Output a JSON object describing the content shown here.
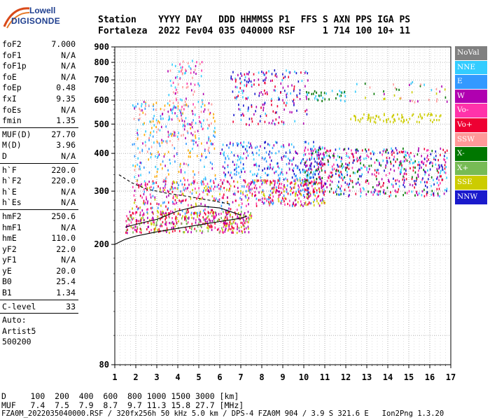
{
  "logo": {
    "line1": "Lowell",
    "line2": "DIGISONDE"
  },
  "header": {
    "labels": [
      "Station",
      "YYYY DAY",
      "DDD",
      "HHMMSS",
      "P1",
      "FFS",
      "S",
      "AXN",
      "PPS",
      "IGA",
      "PS"
    ],
    "line1": "Station    YYYY DAY   DDD HHMMSS P1  FFS S AXN PPS IGA PS",
    "line2": "Fortaleza  2022 Fev04 035 040000 RSF     1 714 100 10+ 11"
  },
  "parameters": {
    "group1": [
      {
        "name": "foF2",
        "value": "7.000"
      },
      {
        "name": "foF1",
        "value": "N/A"
      },
      {
        "name": "foF1p",
        "value": "N/A"
      },
      {
        "name": "foE",
        "value": "N/A"
      },
      {
        "name": "foEp",
        "value": "0.48"
      },
      {
        "name": "fxI",
        "value": "9.35"
      },
      {
        "name": "foEs",
        "value": "N/A"
      },
      {
        "name": "fmin",
        "value": "1.35"
      }
    ],
    "group2": [
      {
        "name": "MUF(D)",
        "value": "27.70"
      },
      {
        "name": "M(D)",
        "value": "3.96"
      },
      {
        "name": "D",
        "value": "N/A"
      }
    ],
    "group3": [
      {
        "name": "h`F",
        "value": "220.0"
      },
      {
        "name": "h`F2",
        "value": "220.0"
      },
      {
        "name": "h`E",
        "value": "N/A"
      },
      {
        "name": "h`Es",
        "value": "N/A"
      }
    ],
    "group4": [
      {
        "name": "hmF2",
        "value": "250.6"
      },
      {
        "name": "hmF1",
        "value": "N/A"
      },
      {
        "name": "hmE",
        "value": "110.0"
      },
      {
        "name": "yF2",
        "value": "22.0"
      },
      {
        "name": "yF1",
        "value": "N/A"
      },
      {
        "name": "yE",
        "value": "20.0"
      },
      {
        "name": "B0",
        "value": "25.4"
      },
      {
        "name": "B1",
        "value": "1.34"
      }
    ],
    "group5": [
      {
        "name": "C-level",
        "value": "33"
      }
    ],
    "footer": [
      "Auto:",
      "Artist5",
      "500200"
    ]
  },
  "bottom": {
    "d_line": "D     100  200  400  600  800 1000 1500 3000 [km]",
    "muf_line": "MUF   7.4  7.5  7.9  8.7  9.7 11.3 15.8 27.7 [MHz]",
    "info_line": "FZA0M_2022035040000.RSF / 320fx256h 50 kHz 5.0 km / DPS-4 FZA0M 904 / 3.9 S 321.6 E   Ion2Png 1.3.20"
  },
  "legend": [
    {
      "label": "NoVal",
      "color": "#808080"
    },
    {
      "label": "NNE",
      "color": "#33ccff"
    },
    {
      "label": "E",
      "color": "#3399ff"
    },
    {
      "label": "W",
      "color": "#b000b0"
    },
    {
      "label": "Vo-",
      "color": "#ff33aa"
    },
    {
      "label": "Vo+",
      "color": "#ee0033"
    },
    {
      "label": "SSW",
      "color": "#ff9999"
    },
    {
      "label": "X-",
      "color": "#007700"
    },
    {
      "label": "X+",
      "color": "#77bb55"
    },
    {
      "label": "SSE",
      "color": "#cccc00"
    },
    {
      "label": "NNW",
      "color": "#1a1acc"
    }
  ],
  "chart_data": {
    "type": "scatter",
    "title": "",
    "xlabel": "",
    "ylabel": "",
    "xlim": [
      1,
      17
    ],
    "ylim": [
      80,
      900
    ],
    "x_ticks": [
      1,
      2,
      3,
      4,
      5,
      6,
      7,
      8,
      9,
      10,
      11,
      12,
      13,
      14,
      15,
      16,
      17
    ],
    "y_ticks": [
      80,
      200,
      300,
      400,
      500,
      600,
      700,
      800,
      900
    ],
    "y_scale": "log",
    "grid": true,
    "legend_position": "right",
    "clusters": [
      {
        "x": [
          1.5,
          7.5
        ],
        "y": [
          220,
          260
        ],
        "colors": [
          "#ee0033",
          "#ff33aa",
          "#b000b0",
          "#cccc00",
          "#77bb55"
        ],
        "count": 420
      },
      {
        "x": [
          1.8,
          7.0
        ],
        "y": [
          255,
          330
        ],
        "colors": [
          "#ee0033",
          "#ff33aa",
          "#cccc00",
          "#3399ff",
          "#b000b0"
        ],
        "count": 260
      },
      {
        "x": [
          7.0,
          11.0
        ],
        "y": [
          270,
          330
        ],
        "colors": [
          "#ee0033",
          "#ff33aa",
          "#cccc00",
          "#b000b0",
          "#3399ff"
        ],
        "count": 320
      },
      {
        "x": [
          6.0,
          11.0
        ],
        "y": [
          330,
          440
        ],
        "colors": [
          "#1a1acc",
          "#3399ff",
          "#b000b0",
          "#33ccff"
        ],
        "count": 260
      },
      {
        "x": [
          10.0,
          16.8
        ],
        "y": [
          290,
          420
        ],
        "colors": [
          "#1a1acc",
          "#b000b0",
          "#007700",
          "#ff33aa",
          "#ee0033",
          "#33ccff"
        ],
        "count": 620
      },
      {
        "x": [
          1.8,
          5.8
        ],
        "y": [
          300,
          600
        ],
        "colors": [
          "#33ccff",
          "#3399ff",
          "#b000b0",
          "#ff9999",
          "#ffaa00"
        ],
        "count": 320
      },
      {
        "x": [
          3.5,
          5.2
        ],
        "y": [
          450,
          820
        ],
        "colors": [
          "#ff9999",
          "#b000b0",
          "#33ccff",
          "#ff33aa"
        ],
        "count": 120
      },
      {
        "x": [
          6.5,
          10.2
        ],
        "y": [
          500,
          760
        ],
        "colors": [
          "#33ccff",
          "#b000b0",
          "#1a1acc",
          "#ee0033"
        ],
        "count": 200
      },
      {
        "x": [
          10.0,
          12.0
        ],
        "y": [
          600,
          650
        ],
        "colors": [
          "#33ccff",
          "#007700"
        ],
        "count": 35
      },
      {
        "x": [
          12.2,
          16.5
        ],
        "y": [
          510,
          545
        ],
        "colors": [
          "#cccc00"
        ],
        "count": 80
      },
      {
        "x": [
          12.2,
          16.8
        ],
        "y": [
          595,
          700
        ],
        "colors": [
          "#cccc00",
          "#33ccff",
          "#ff9999",
          "#007700",
          "#b000b0"
        ],
        "count": 40
      }
    ],
    "lines": [
      {
        "name": "",
        "style": "solid",
        "x": [
          1.0,
          1.5,
          2.0,
          3.0,
          4.0,
          5.0,
          6.0,
          7.0,
          7.3
        ],
        "y": [
          200,
          208,
          213,
          220,
          226,
          232,
          238,
          244,
          248
        ]
      },
      {
        "name": "",
        "style": "solid",
        "x": [
          1.5,
          2.0,
          3.0,
          4.0,
          5.0,
          6.0,
          7.0
        ],
        "y": [
          228,
          233,
          242,
          258,
          268,
          264,
          250
        ]
      },
      {
        "name": "",
        "style": "dashed",
        "x": [
          1.2,
          1.8,
          2.5,
          3.5,
          4.5,
          5.5,
          6.5
        ],
        "y": [
          340,
          320,
          305,
          295,
          288,
          280,
          272
        ]
      }
    ]
  }
}
